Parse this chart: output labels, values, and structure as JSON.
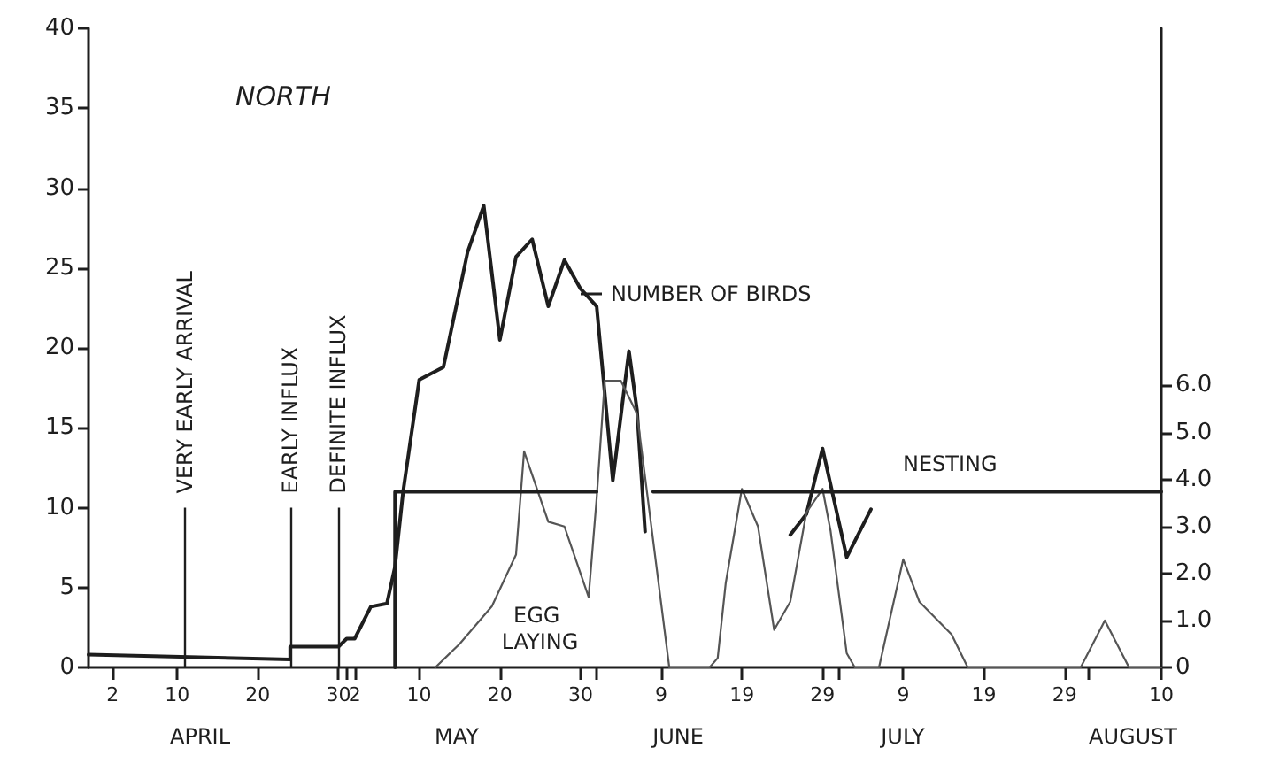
{
  "chart_data": {
    "type": "line",
    "title": "NORTH",
    "xlim": [
      "--03-30",
      "--08-10"
    ],
    "xticks": [
      {
        "value": "--04-02",
        "label": "2"
      },
      {
        "value": "--04-10",
        "label": "10"
      },
      {
        "value": "--04-20",
        "label": "20"
      },
      {
        "value": "--04-30",
        "label": "30"
      },
      {
        "value": "--05-01",
        "label": null
      },
      {
        "value": "--05-02",
        "label": "2"
      },
      {
        "value": "--05-10",
        "label": "10"
      },
      {
        "value": "--05-20",
        "label": "20"
      },
      {
        "value": "--05-30",
        "label": "30"
      },
      {
        "value": "--06-01",
        "label": null
      },
      {
        "value": "--06-09",
        "label": "9"
      },
      {
        "value": "--06-19",
        "label": "19"
      },
      {
        "value": "--06-29",
        "label": "29"
      },
      {
        "value": "--07-01",
        "label": null
      },
      {
        "value": "--07-09",
        "label": "9"
      },
      {
        "value": "--07-19",
        "label": "19"
      },
      {
        "value": "--07-29",
        "label": "29"
      },
      {
        "value": "--08-01",
        "label": null
      },
      {
        "value": "--08-10",
        "label": "10"
      }
    ],
    "ylim": [
      0,
      40
    ],
    "yticks": [
      0,
      5,
      10,
      15,
      20,
      25,
      30,
      35,
      40
    ],
    "y2lim": [
      0,
      13.6
    ],
    "y2ticks": [
      0,
      {
        "value": 1,
        "label": "1.0"
      },
      {
        "value": 2,
        "label": "2.0"
      },
      {
        "value": 3,
        "label": "3.0"
      },
      {
        "value": 4,
        "label": "4.0"
      },
      {
        "value": 5,
        "label": "5.0"
      },
      {
        "value": 6,
        "label": "6.0"
      }
    ],
    "grid": false,
    "legend": "top",
    "marker": "none",
    "line_style": "solid",
    "series": [
      {
        "name": "NUMBER OF BIRDS",
        "color": "#1e1e1e",
        "x": [
          "--03-30",
          "--04-24",
          "--04-24",
          "--04-30",
          "--05-01",
          "--05-02",
          "--05-04",
          "--05-06",
          "--05-07",
          "--05-08",
          "--05-10",
          "--05-13",
          "--05-16",
          "--05-18",
          "--05-20",
          "--05-22",
          "--05-24",
          "--05-26",
          "--05-28",
          "--05-30",
          "--06-01",
          "--06-03",
          "--06-05",
          "--06-06",
          "--06-07",
          "--06-16",
          "--06-25",
          "--06-27",
          "--06-29",
          "--07-02",
          "--07-05"
        ],
        "values": [
          0.8,
          0.5,
          1.3,
          1.3,
          1.8,
          1.8,
          3.8,
          4.0,
          6.3,
          11,
          18,
          18.8,
          26,
          28.9,
          20.5,
          25.7,
          26.8,
          22.6,
          25.5,
          23.7,
          22.6,
          11.7,
          19.8,
          16.1,
          8.5,
          null,
          8.3,
          9.6,
          13.7,
          6.9,
          9.9
        ]
      },
      {
        "name": "EGG LAYING",
        "color": "#555555",
        "axis": "y2",
        "x": [
          "--05-12",
          "--05-15",
          "--05-19",
          "--05-22",
          "--05-23",
          "--05-26",
          "--05-28",
          "--05-31",
          "--06-01",
          "--06-02",
          "--06-04",
          "--06-06",
          "--06-10",
          "--06-15",
          "--06-16",
          "--06-17",
          "--06-19",
          "--06-21",
          "--06-23",
          "--06-25",
          "--06-27",
          "--06-29",
          "--06-30",
          "--07-02",
          "--07-03",
          "--07-06",
          "--07-09",
          "--07-11",
          "--07-15",
          "--07-17",
          "--07-31",
          "--08-03",
          "--08-06",
          "--08-10"
        ],
        "values": [
          0,
          0.5,
          1.3,
          2.4,
          4.6,
          3.1,
          3.0,
          1.5,
          3.6,
          6.1,
          6.1,
          5.4,
          0,
          0,
          0.2,
          1.8,
          3.8,
          3.0,
          0.8,
          1.4,
          3.3,
          3.8,
          2.9,
          0.3,
          0,
          0,
          2.3,
          1.4,
          0.7,
          0,
          0,
          1.0,
          0,
          0
        ]
      },
      {
        "name": "NESTING",
        "color": "#1e1e1e",
        "x": [
          "--05-07",
          "--05-07",
          "--06-01",
          "--06-04",
          "--06-08",
          "--08-10"
        ],
        "values": [
          0,
          11,
          11,
          null,
          11,
          11
        ]
      }
    ],
    "ref_lines": [
      {
        "axis": "x",
        "value": "--04-11",
        "label": "VERY EARLY ARRIVAL"
      },
      {
        "axis": "x",
        "value": "--04-24",
        "label": "EARLY INFLUX"
      },
      {
        "axis": "x",
        "value": "--04-30",
        "label": "DEFINITE INFLUX"
      }
    ],
    "annotations": [
      "APRIL",
      "MAY",
      "JUNE",
      "JULY",
      "AUGUST"
    ]
  }
}
